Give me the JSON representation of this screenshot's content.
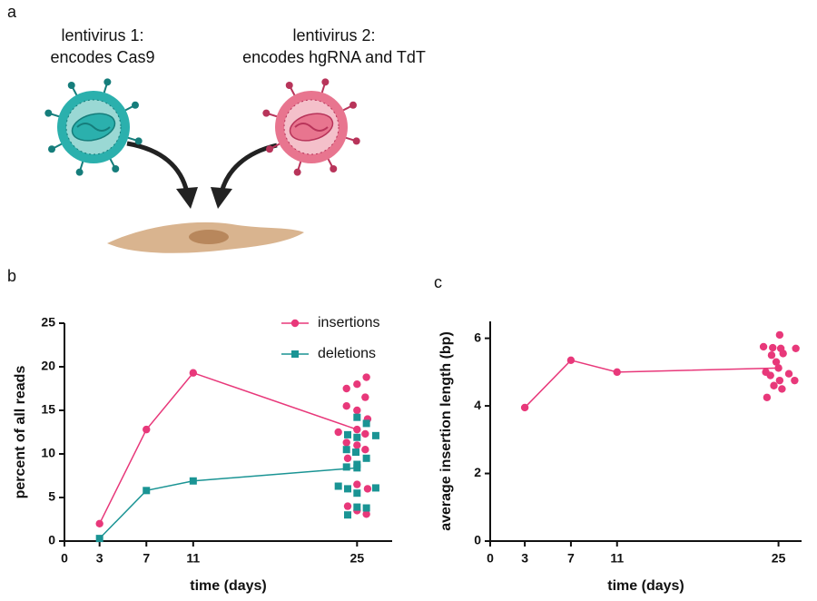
{
  "panels": [
    "a",
    "b",
    "c"
  ],
  "diagram": {
    "virus1": [
      "lentivirus 1:",
      "encodes Cas9"
    ],
    "virus2": [
      "lentivirus 2:",
      "encodes hgRNA and TdT"
    ]
  },
  "chart_data": [
    {
      "type": "line",
      "x_label": "time (days)",
      "y_label": "percent of all reads",
      "xlim": [
        0,
        28
      ],
      "xticks": [
        0,
        3,
        7,
        11,
        25
      ],
      "ylim": [
        0,
        25
      ],
      "yticks": [
        0,
        5,
        10,
        15,
        20,
        25
      ],
      "legend": "top-right",
      "series": [
        {
          "name": "insertions",
          "color": "#e8387a",
          "marker": "circle",
          "x": [
            3,
            7,
            11,
            25
          ],
          "values": [
            2.0,
            12.8,
            19.3,
            12.8
          ]
        },
        {
          "name": "deletions",
          "color": "#1a9494",
          "marker": "square",
          "x": [
            3,
            7,
            11,
            25
          ],
          "values": [
            0.3,
            5.8,
            6.9,
            8.4
          ]
        }
      ],
      "points": [
        {
          "color": "#e8387a",
          "marker": "circle",
          "x": [
            25.8,
            25,
            24.1,
            25.7,
            24.1,
            25,
            25.9,
            23.4,
            25.7,
            25,
            24.1,
            25.7,
            24.2,
            25,
            25.9,
            24.2,
            25,
            25.8
          ],
          "values": [
            18.8,
            18.0,
            17.5,
            16.5,
            15.5,
            15.0,
            14.0,
            12.5,
            12.3,
            11.0,
            11.3,
            10.5,
            9.5,
            6.5,
            6.0,
            4.0,
            3.5,
            3.1
          ]
        },
        {
          "color": "#1a9494",
          "marker": "square",
          "x": [
            25,
            25.8,
            24.2,
            26.6,
            25,
            24.9,
            24.1,
            25.8,
            25,
            24.1,
            23.4,
            24.2,
            26.6,
            25,
            25,
            25.8,
            24.2
          ],
          "values": [
            14.2,
            13.5,
            12.2,
            12.1,
            11.9,
            10.2,
            10.5,
            9.5,
            8.8,
            8.5,
            6.3,
            6.0,
            6.1,
            5.5,
            3.9,
            3.8,
            3.0
          ]
        }
      ]
    },
    {
      "type": "line",
      "x_label": "time (days)",
      "y_label": "average insertion length (bp)",
      "xlim": [
        0,
        27
      ],
      "xticks": [
        0,
        3,
        7,
        11,
        25
      ],
      "ylim": [
        0,
        6.5
      ],
      "yticks": [
        0,
        2,
        4,
        6
      ],
      "series": [
        {
          "color": "#e8387a",
          "marker": "circle",
          "x": [
            3,
            7,
            11,
            25
          ],
          "values": [
            3.95,
            5.35,
            5.0,
            5.12
          ]
        }
      ],
      "points": [
        {
          "color": "#e8387a",
          "marker": "circle",
          "x": [
            25.1,
            23.7,
            24.5,
            25.2,
            26.5,
            24.4,
            25.4,
            24.8,
            23.9,
            25.9,
            24.3,
            25.1,
            26.4,
            24.6,
            25.3,
            24.0
          ],
          "values": [
            6.1,
            5.75,
            5.72,
            5.7,
            5.7,
            5.5,
            5.55,
            5.3,
            5.0,
            4.95,
            4.9,
            4.75,
            4.75,
            4.6,
            4.5,
            4.25
          ]
        }
      ]
    }
  ]
}
